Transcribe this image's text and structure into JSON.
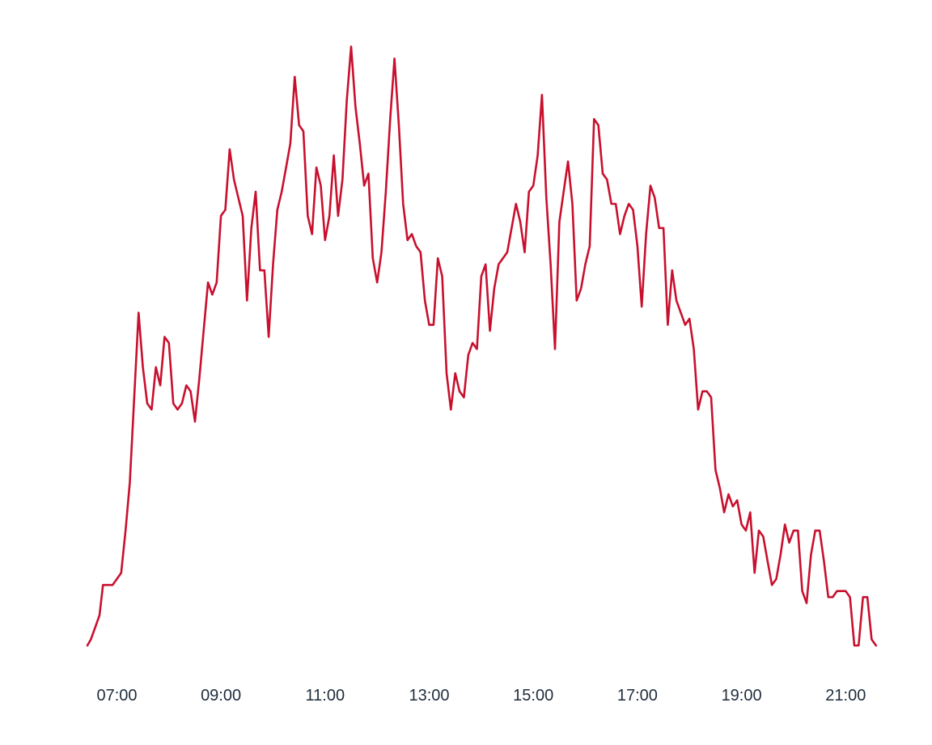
{
  "chart_data": {
    "type": "line",
    "title": "",
    "xlabel": "",
    "ylabel": "",
    "grid": false,
    "legend": "none",
    "y_axis_visible": false,
    "x_ticks": [
      "07:00",
      "09:00",
      "11:00",
      "13:00",
      "15:00",
      "17:00",
      "19:00",
      "21:00"
    ],
    "x_domain": [
      "06:26",
      "21:38"
    ],
    "y_domain": [
      0,
      100
    ],
    "series": [
      {
        "color": "#c8102e",
        "points": [
          [
            "06:26",
            0
          ],
          [
            "06:30",
            1
          ],
          [
            "06:35",
            3
          ],
          [
            "06:40",
            5
          ],
          [
            "06:44",
            10
          ],
          [
            "06:55",
            10
          ],
          [
            "07:00",
            11
          ],
          [
            "07:05",
            12
          ],
          [
            "07:10",
            19
          ],
          [
            "07:15",
            27
          ],
          [
            "07:20",
            41
          ],
          [
            "07:25",
            55
          ],
          [
            "07:30",
            46
          ],
          [
            "07:35",
            40
          ],
          [
            "07:40",
            39
          ],
          [
            "07:45",
            46
          ],
          [
            "07:50",
            43
          ],
          [
            "07:55",
            51
          ],
          [
            "08:00",
            50
          ],
          [
            "08:05",
            40
          ],
          [
            "08:10",
            39
          ],
          [
            "08:15",
            40
          ],
          [
            "08:20",
            43
          ],
          [
            "08:25",
            42
          ],
          [
            "08:30",
            37
          ],
          [
            "08:35",
            44
          ],
          [
            "08:40",
            52
          ],
          [
            "08:45",
            60
          ],
          [
            "08:50",
            58
          ],
          [
            "08:55",
            60
          ],
          [
            "09:00",
            71
          ],
          [
            "09:05",
            72
          ],
          [
            "09:10",
            82
          ],
          [
            "09:15",
            77
          ],
          [
            "09:20",
            74
          ],
          [
            "09:25",
            71
          ],
          [
            "09:30",
            57
          ],
          [
            "09:35",
            69
          ],
          [
            "09:40",
            75
          ],
          [
            "09:45",
            62
          ],
          [
            "09:50",
            62
          ],
          [
            "09:55",
            51
          ],
          [
            "10:00",
            63
          ],
          [
            "10:05",
            72
          ],
          [
            "10:10",
            75
          ],
          [
            "10:15",
            79
          ],
          [
            "10:20",
            83
          ],
          [
            "10:25",
            94
          ],
          [
            "10:30",
            86
          ],
          [
            "10:35",
            85
          ],
          [
            "10:40",
            71
          ],
          [
            "10:45",
            68
          ],
          [
            "10:50",
            79
          ],
          [
            "10:55",
            76
          ],
          [
            "11:00",
            67
          ],
          [
            "11:05",
            71
          ],
          [
            "11:10",
            81
          ],
          [
            "11:15",
            71
          ],
          [
            "11:20",
            77
          ],
          [
            "11:25",
            90
          ],
          [
            "11:30",
            99
          ],
          [
            "11:35",
            89
          ],
          [
            "11:40",
            83
          ],
          [
            "11:45",
            76
          ],
          [
            "11:50",
            78
          ],
          [
            "11:55",
            64
          ],
          [
            "12:00",
            60
          ],
          [
            "12:05",
            65
          ],
          [
            "12:10",
            75
          ],
          [
            "12:15",
            87
          ],
          [
            "12:20",
            97
          ],
          [
            "12:25",
            86
          ],
          [
            "12:30",
            73
          ],
          [
            "12:35",
            67
          ],
          [
            "12:40",
            68
          ],
          [
            "12:45",
            66
          ],
          [
            "12:50",
            65
          ],
          [
            "12:55",
            57
          ],
          [
            "13:00",
            53
          ],
          [
            "13:05",
            53
          ],
          [
            "13:10",
            64
          ],
          [
            "13:15",
            61
          ],
          [
            "13:20",
            45
          ],
          [
            "13:25",
            39
          ],
          [
            "13:30",
            45
          ],
          [
            "13:35",
            42
          ],
          [
            "13:40",
            41
          ],
          [
            "13:45",
            48
          ],
          [
            "13:50",
            50
          ],
          [
            "13:55",
            49
          ],
          [
            "14:00",
            61
          ],
          [
            "14:05",
            63
          ],
          [
            "14:10",
            52
          ],
          [
            "14:15",
            59
          ],
          [
            "14:20",
            63
          ],
          [
            "14:25",
            64
          ],
          [
            "14:30",
            65
          ],
          [
            "14:35",
            69
          ],
          [
            "14:40",
            73
          ],
          [
            "14:45",
            70
          ],
          [
            "14:50",
            65
          ],
          [
            "14:55",
            75
          ],
          [
            "15:00",
            76
          ],
          [
            "15:05",
            81
          ],
          [
            "15:10",
            91
          ],
          [
            "15:15",
            74
          ],
          [
            "15:20",
            63
          ],
          [
            "15:25",
            49
          ],
          [
            "15:30",
            70
          ],
          [
            "15:35",
            75
          ],
          [
            "15:40",
            80
          ],
          [
            "15:45",
            73
          ],
          [
            "15:50",
            57
          ],
          [
            "15:55",
            59
          ],
          [
            "16:00",
            63
          ],
          [
            "16:05",
            66
          ],
          [
            "16:10",
            87
          ],
          [
            "16:15",
            86
          ],
          [
            "16:20",
            78
          ],
          [
            "16:25",
            77
          ],
          [
            "16:30",
            73
          ],
          [
            "16:35",
            73
          ],
          [
            "16:40",
            68
          ],
          [
            "16:45",
            71
          ],
          [
            "16:50",
            73
          ],
          [
            "16:55",
            72
          ],
          [
            "17:00",
            66
          ],
          [
            "17:05",
            56
          ],
          [
            "17:10",
            68
          ],
          [
            "17:15",
            76
          ],
          [
            "17:20",
            74
          ],
          [
            "17:25",
            69
          ],
          [
            "17:30",
            69
          ],
          [
            "17:35",
            53
          ],
          [
            "17:40",
            62
          ],
          [
            "17:45",
            57
          ],
          [
            "17:50",
            55
          ],
          [
            "17:55",
            53
          ],
          [
            "18:00",
            54
          ],
          [
            "18:05",
            49
          ],
          [
            "18:10",
            39
          ],
          [
            "18:15",
            42
          ],
          [
            "18:20",
            42
          ],
          [
            "18:25",
            41
          ],
          [
            "18:30",
            29
          ],
          [
            "18:35",
            26
          ],
          [
            "18:40",
            22
          ],
          [
            "18:45",
            25
          ],
          [
            "18:50",
            23
          ],
          [
            "18:55",
            24
          ],
          [
            "19:00",
            20
          ],
          [
            "19:05",
            19
          ],
          [
            "19:10",
            22
          ],
          [
            "19:15",
            12
          ],
          [
            "19:20",
            19
          ],
          [
            "19:25",
            18
          ],
          [
            "19:30",
            14
          ],
          [
            "19:35",
            10
          ],
          [
            "19:40",
            11
          ],
          [
            "19:45",
            15
          ],
          [
            "19:50",
            20
          ],
          [
            "19:55",
            17
          ],
          [
            "20:00",
            19
          ],
          [
            "20:05",
            19
          ],
          [
            "20:10",
            9
          ],
          [
            "20:15",
            7
          ],
          [
            "20:20",
            15
          ],
          [
            "20:25",
            19
          ],
          [
            "20:30",
            19
          ],
          [
            "20:35",
            14
          ],
          [
            "20:40",
            8
          ],
          [
            "20:45",
            8
          ],
          [
            "20:50",
            9
          ],
          [
            "20:55",
            9
          ],
          [
            "21:00",
            9
          ],
          [
            "21:05",
            8
          ],
          [
            "21:10",
            0
          ],
          [
            "21:15",
            0
          ],
          [
            "21:20",
            8
          ],
          [
            "21:25",
            8
          ],
          [
            "21:30",
            1
          ],
          [
            "21:35",
            0
          ]
        ]
      }
    ]
  }
}
